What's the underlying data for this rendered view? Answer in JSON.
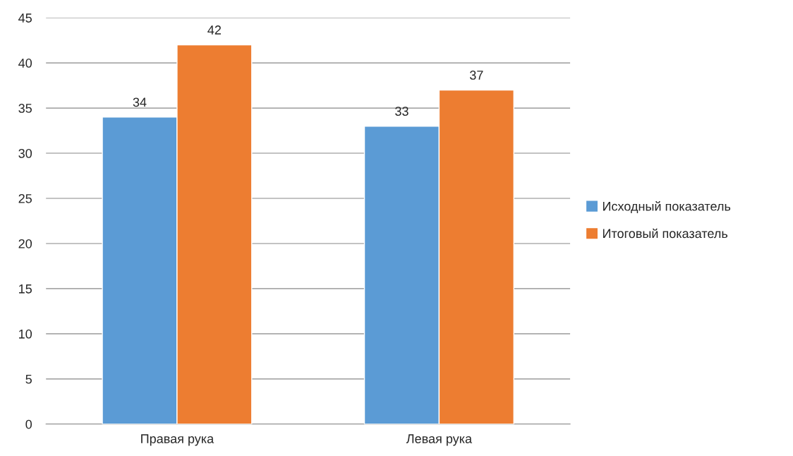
{
  "chart_data": {
    "type": "bar",
    "categories": [
      "Правая рука",
      "Левая рука"
    ],
    "series": [
      {
        "name": "Исходный показатель",
        "color": "#5b9bd5",
        "values": [
          34,
          33
        ]
      },
      {
        "name": "Итоговый показатель",
        "color": "#ed7d31",
        "values": [
          42,
          37
        ]
      }
    ],
    "ylim": [
      0,
      45
    ],
    "yticks": [
      0,
      5,
      10,
      15,
      20,
      25,
      30,
      35,
      40,
      45
    ],
    "grid": "y",
    "legend": "right",
    "data_labels": true
  }
}
